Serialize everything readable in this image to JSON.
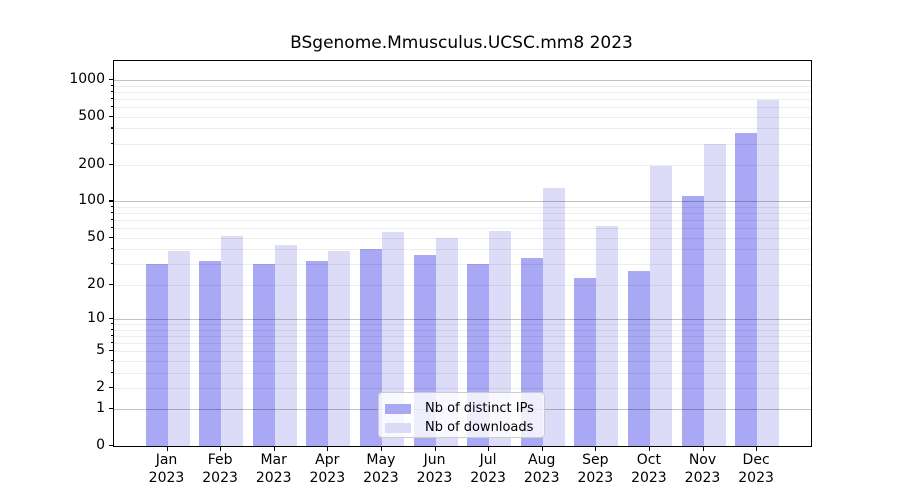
{
  "title": "BSgenome.Mmusculus.UCSC.mm8 2023",
  "colors": {
    "distinct_ips": "#a8a8f5",
    "downloads": "#dcdcf9",
    "axis": "#000000",
    "grid_minor": "#ebebeb",
    "grid_major": "#bfbfbf",
    "legend_border": "#cccccc"
  },
  "chart_data": {
    "type": "bar",
    "scale": "log1p",
    "title": "BSgenome.Mmusculus.UCSC.mm8 2023",
    "categories": [
      "Jan",
      "Feb",
      "Mar",
      "Apr",
      "May",
      "Jun",
      "Jul",
      "Aug",
      "Sep",
      "Oct",
      "Nov",
      "Dec"
    ],
    "year_label": "2023",
    "series": [
      {
        "name": "Nb of distinct IPs",
        "color": "#a8a8f5",
        "values": [
          30,
          32,
          30,
          32,
          40,
          36,
          30,
          34,
          23,
          26,
          111,
          365
        ]
      },
      {
        "name": "Nb of downloads",
        "color": "#dcdcf9",
        "values": [
          39,
          52,
          43,
          39,
          56,
          50,
          57,
          130,
          63,
          195,
          300,
          685
        ]
      }
    ],
    "y_ticks": [
      0,
      1,
      2,
      5,
      10,
      20,
      50,
      100,
      200,
      500,
      1000
    ],
    "major_gridlines": [
      1,
      10,
      100,
      1000
    ],
    "ylim": [
      0,
      1460
    ],
    "grid": true,
    "legend_position": "bottom-center"
  }
}
